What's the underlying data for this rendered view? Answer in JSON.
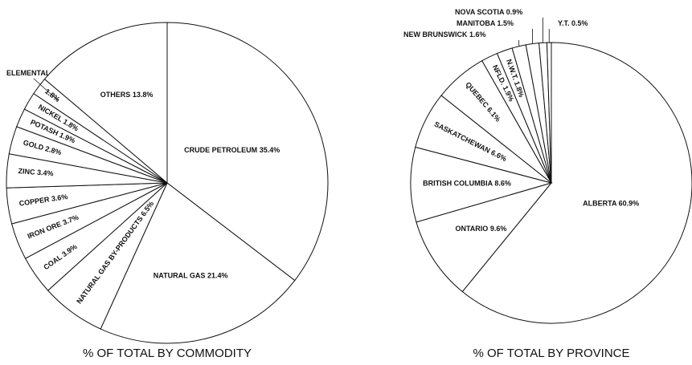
{
  "chart_data": [
    {
      "type": "pie",
      "title": "% OF TOTAL BY COMMODITY",
      "categories": [
        "CRUDE PETROLEUM",
        "NATURAL GAS",
        "NATURAL GAS BY-PRODUCTS",
        "COAL",
        "IRON ORE",
        "COPPER",
        "ZINC",
        "GOLD",
        "POTASH",
        "NICKEL",
        "ELEMENTAL SULPHUR",
        "OTHERS"
      ],
      "values": [
        35.4,
        21.4,
        6.5,
        3.9,
        3.7,
        3.6,
        3.4,
        2.8,
        1.9,
        1.8,
        1.8,
        13.8
      ],
      "value_labels": [
        "35.4%",
        "21.4%",
        "6.5%",
        "3.9%",
        "3.7%",
        "3.6%",
        "3.4%",
        "2.8%",
        "1.9%",
        "1.8%",
        "1.8%",
        "13.8%"
      ],
      "color": "#ffffff"
    },
    {
      "type": "pie",
      "title": "% OF TOTAL BY PROVINCE",
      "categories": [
        "ALBERTA",
        "ONTARIO",
        "BRITISH COLUMBIA",
        "SASKATCHEWAN",
        "QUEBEC",
        "NFLD.",
        "N.W.T.",
        "NEW BRUNSWICK",
        "MANITOBA",
        "NOVA SCOTIA",
        "Y.T."
      ],
      "values": [
        60.9,
        9.6,
        8.6,
        6.6,
        6.1,
        1.9,
        1.8,
        1.6,
        1.5,
        0.9,
        0.5
      ],
      "value_labels": [
        "60.9%",
        "9.6%",
        "8.6%",
        "6.6%",
        "6.1%",
        "1.9%",
        "1.8%",
        "1.6%",
        "1.5%",
        "0.9%",
        "0.5%"
      ],
      "color": "#ffffff"
    }
  ]
}
